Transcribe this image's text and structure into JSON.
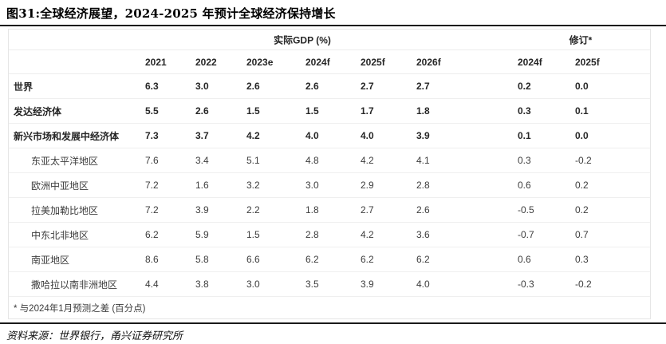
{
  "title": "图31:全球经济展望，2024-2025 年预计全球经济保持增长",
  "table": {
    "group_headers": [
      {
        "label": "实际GDP (%)"
      },
      {
        "label": "修订*"
      }
    ],
    "columns": [
      "2021",
      "2022",
      "2023e",
      "2024f",
      "2025f",
      "2026f",
      "2024f",
      "2025f"
    ],
    "rows": [
      {
        "label": "世界",
        "bold": true,
        "indent": false,
        "values": [
          "6.3",
          "3.0",
          "2.6",
          "2.6",
          "2.7",
          "2.7",
          "0.2",
          "0.0"
        ]
      },
      {
        "label": "发达经济体",
        "bold": true,
        "indent": false,
        "values": [
          "5.5",
          "2.6",
          "1.5",
          "1.5",
          "1.7",
          "1.8",
          "0.3",
          "0.1"
        ]
      },
      {
        "label": "新兴市场和发展中经济体",
        "bold": true,
        "indent": false,
        "values": [
          "7.3",
          "3.7",
          "4.2",
          "4.0",
          "4.0",
          "3.9",
          "0.1",
          "0.0"
        ]
      },
      {
        "label": "东亚太平洋地区",
        "bold": false,
        "indent": true,
        "values": [
          "7.6",
          "3.4",
          "5.1",
          "4.8",
          "4.2",
          "4.1",
          "0.3",
          "-0.2"
        ]
      },
      {
        "label": "欧洲中亚地区",
        "bold": false,
        "indent": true,
        "values": [
          "7.2",
          "1.6",
          "3.2",
          "3.0",
          "2.9",
          "2.8",
          "0.6",
          "0.2"
        ]
      },
      {
        "label": "拉美加勒比地区",
        "bold": false,
        "indent": true,
        "values": [
          "7.2",
          "3.9",
          "2.2",
          "1.8",
          "2.7",
          "2.6",
          "-0.5",
          "0.2"
        ]
      },
      {
        "label": "中东北非地区",
        "bold": false,
        "indent": true,
        "values": [
          "6.2",
          "5.9",
          "1.5",
          "2.8",
          "4.2",
          "3.6",
          "-0.7",
          "0.7"
        ]
      },
      {
        "label": "南亚地区",
        "bold": false,
        "indent": true,
        "values": [
          "8.6",
          "5.8",
          "6.6",
          "6.2",
          "6.2",
          "6.2",
          "0.6",
          "0.3"
        ]
      },
      {
        "label": "撒哈拉以南非洲地区",
        "bold": false,
        "indent": true,
        "values": [
          "4.4",
          "3.8",
          "3.0",
          "3.5",
          "3.9",
          "4.0",
          "-0.3",
          "-0.2"
        ]
      }
    ],
    "footnote": "* 与2024年1月预测之差 (百分点)"
  },
  "source": "资料来源：世界银行，甬兴证券研究所"
}
